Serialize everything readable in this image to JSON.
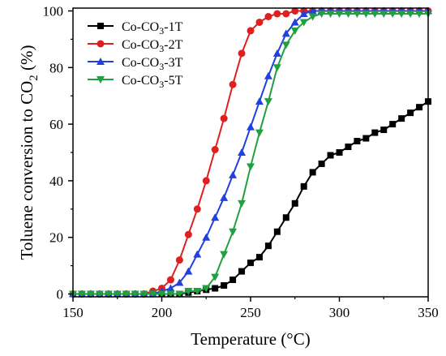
{
  "chart_data": {
    "type": "line",
    "xlabel": "Temperature (°C)",
    "ylabel": {
      "main": "Toluene conversion to CO",
      "sub": "2",
      "suffix": " (%)"
    },
    "xlim": [
      150,
      350
    ],
    "ylim": [
      -1,
      101
    ],
    "xticks": [
      150,
      200,
      250,
      300,
      350
    ],
    "yticks": [
      0,
      20,
      40,
      60,
      80,
      100
    ],
    "grid": false,
    "legend_position": "top-left",
    "series": [
      {
        "name": {
          "pre": "Co-CO",
          "sub": "3",
          "post": "-1T"
        },
        "color": "#000000",
        "marker": "square",
        "x": [
          150,
          155,
          160,
          165,
          170,
          175,
          180,
          185,
          190,
          195,
          200,
          205,
          210,
          215,
          220,
          225,
          230,
          235,
          240,
          245,
          250,
          255,
          260,
          265,
          270,
          275,
          280,
          285,
          290,
          295,
          300,
          305,
          310,
          315,
          320,
          325,
          330,
          335,
          340,
          345,
          350
        ],
        "y": [
          0,
          0,
          0,
          0,
          0,
          0,
          0,
          0,
          0,
          0,
          0,
          0,
          0,
          0.5,
          1,
          1.5,
          2,
          3,
          5,
          8,
          11,
          13,
          17,
          22,
          27,
          32,
          38,
          43,
          46,
          49,
          50,
          52,
          54,
          55,
          57,
          58,
          60,
          62,
          64,
          66,
          68
        ]
      },
      {
        "name": {
          "pre": "Co-CO",
          "sub": "3",
          "post": "-2T"
        },
        "color": "#e02020",
        "marker": "circle",
        "x": [
          150,
          155,
          160,
          165,
          170,
          175,
          180,
          185,
          190,
          195,
          200,
          205,
          210,
          215,
          220,
          225,
          230,
          235,
          240,
          245,
          250,
          255,
          260,
          265,
          270,
          275,
          280,
          285,
          290,
          295,
          300,
          305,
          310,
          315,
          320,
          325,
          330,
          335,
          340,
          345,
          350
        ],
        "y": [
          0,
          0,
          0,
          0,
          0,
          0,
          0,
          0,
          0,
          1,
          2,
          5,
          12,
          21,
          30,
          40,
          51,
          62,
          74,
          85,
          93,
          96,
          98,
          99,
          99,
          100,
          100,
          100,
          100,
          100,
          100,
          100,
          100,
          100,
          100,
          100,
          100,
          100,
          100,
          100,
          100
        ]
      },
      {
        "name": {
          "pre": "Co-CO",
          "sub": "3",
          "post": "-3T"
        },
        "color": "#2040e0",
        "marker": "triangle-up",
        "x": [
          150,
          155,
          160,
          165,
          170,
          175,
          180,
          185,
          190,
          195,
          200,
          205,
          210,
          215,
          220,
          225,
          230,
          235,
          240,
          245,
          250,
          255,
          260,
          265,
          270,
          275,
          280,
          285,
          290,
          295,
          300,
          305,
          310,
          315,
          320,
          325,
          330,
          335,
          340,
          345,
          350
        ],
        "y": [
          0,
          0,
          0,
          0,
          0,
          0,
          0,
          0,
          0,
          0,
          1,
          2,
          4,
          8,
          14,
          20,
          27,
          34,
          42,
          50,
          59,
          68,
          77,
          85,
          92,
          96,
          99,
          100,
          100,
          100,
          100,
          100,
          100,
          100,
          100,
          100,
          100,
          100,
          100,
          100,
          100
        ]
      },
      {
        "name": {
          "pre": "Co-CO",
          "sub": "3",
          "post": "-5T"
        },
        "color": "#20a040",
        "marker": "triangle-down",
        "x": [
          150,
          155,
          160,
          165,
          170,
          175,
          180,
          185,
          190,
          195,
          200,
          205,
          210,
          215,
          220,
          225,
          230,
          235,
          240,
          245,
          250,
          255,
          260,
          265,
          270,
          275,
          280,
          285,
          290,
          295,
          300,
          305,
          310,
          315,
          320,
          325,
          330,
          335,
          340,
          345,
          350
        ],
        "y": [
          0,
          0,
          0,
          0,
          0,
          0,
          0,
          0,
          0,
          0,
          0,
          0,
          0,
          1,
          1,
          2,
          6,
          14,
          22,
          32,
          45,
          57,
          68,
          80,
          88,
          93,
          96,
          98,
          99,
          99,
          99,
          99,
          99,
          99,
          99,
          99,
          99,
          99,
          99,
          99,
          99
        ]
      }
    ]
  }
}
